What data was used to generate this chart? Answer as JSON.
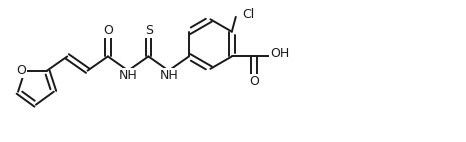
{
  "background_color": "#ffffff",
  "line_color": "#1a1a1a",
  "line_width": 1.4,
  "font_size": 8.5,
  "fig_width": 4.66,
  "fig_height": 1.42,
  "dpi": 100,
  "xlim": [
    0,
    9.32
  ],
  "ylim": [
    -0.5,
    2.34
  ]
}
